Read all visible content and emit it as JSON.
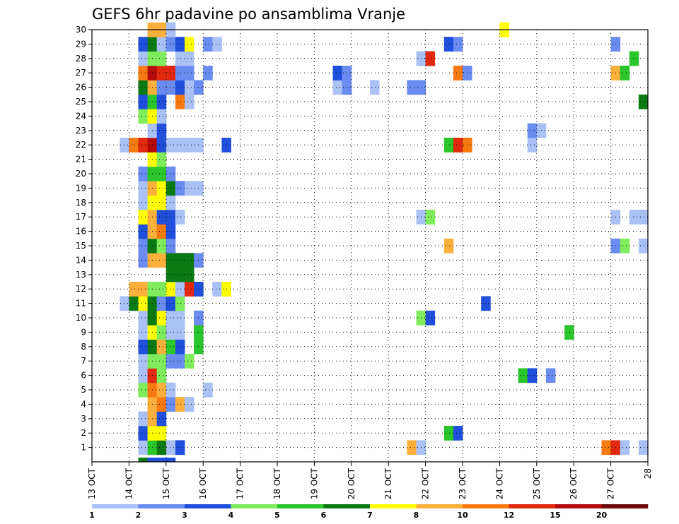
{
  "chart_data": {
    "type": "heatmap",
    "title": "GEFS 6hr padavine po ansamblima Vranje",
    "x_tick_labels": [
      "13 OCT",
      "14 OCT",
      "15 OCT",
      "16 OCT",
      "17 OCT",
      "18 OCT",
      "19 OCT",
      "20 OCT",
      "21 OCT",
      "22 OCT",
      "23 OCT",
      "24 OCT",
      "25 OCT",
      "26 OCT",
      "27 OCT",
      "28"
    ],
    "y_tick_labels": [
      "1",
      "2",
      "3",
      "4",
      "5",
      "6",
      "7",
      "8",
      "9",
      "10",
      "11",
      "12",
      "13",
      "14",
      "15",
      "16",
      "17",
      "18",
      "19",
      "20",
      "21",
      "22",
      "23",
      "24",
      "25",
      "26",
      "27",
      "28",
      "29",
      "30"
    ],
    "xlim_days": [
      13,
      28
    ],
    "time_step_hours": 6,
    "ylim": [
      0,
      30
    ],
    "grid": "dotted",
    "colorbar": {
      "labels": [
        "1",
        "2",
        "3",
        "4",
        "5",
        "6",
        "7",
        "8",
        "10",
        "12",
        "15",
        "20"
      ],
      "colors": [
        "#a9c1f5",
        "#6a8cf1",
        "#1f4fdb",
        "#7fec5b",
        "#2bc62b",
        "#0b7a12",
        "#ffff00",
        "#fbb03b",
        "#f77a11",
        "#e0290e",
        "#b5090c",
        "#6e0a0a"
      ]
    },
    "cells": [
      {
        "m": 1,
        "day": 14,
        "h": 6,
        "c": 1
      },
      {
        "m": 1,
        "day": 14,
        "h": 12,
        "c": 5
      },
      {
        "m": 1,
        "day": 14,
        "h": 18,
        "c": 6
      },
      {
        "m": 1,
        "day": 15,
        "h": 0,
        "c": 1
      },
      {
        "m": 1,
        "day": 15,
        "h": 6,
        "c": 3
      },
      {
        "m": 1,
        "day": 21,
        "h": 12,
        "c": 8
      },
      {
        "m": 1,
        "day": 21,
        "h": 18,
        "c": 1
      },
      {
        "m": 1,
        "day": 26,
        "h": 18,
        "c": 9
      },
      {
        "m": 1,
        "day": 27,
        "h": 0,
        "c": 10
      },
      {
        "m": 1,
        "day": 27,
        "h": 6,
        "c": 1
      },
      {
        "m": 1,
        "day": 27,
        "h": 18,
        "c": 1
      },
      {
        "m": 2,
        "day": 14,
        "h": 6,
        "c": 3
      },
      {
        "m": 2,
        "day": 14,
        "h": 12,
        "c": 7
      },
      {
        "m": 2,
        "day": 14,
        "h": 18,
        "c": 7
      },
      {
        "m": 2,
        "day": 22,
        "h": 12,
        "c": 5
      },
      {
        "m": 2,
        "day": 22,
        "h": 18,
        "c": 3
      },
      {
        "m": 3,
        "day": 14,
        "h": 6,
        "c": 1
      },
      {
        "m": 3,
        "day": 14,
        "h": 12,
        "c": 8
      },
      {
        "m": 3,
        "day": 14,
        "h": 18,
        "c": 3
      },
      {
        "m": 4,
        "day": 14,
        "h": 12,
        "c": 8
      },
      {
        "m": 4,
        "day": 14,
        "h": 18,
        "c": 9
      },
      {
        "m": 4,
        "day": 15,
        "h": 0,
        "c": 2
      },
      {
        "m": 4,
        "day": 15,
        "h": 6,
        "c": 8
      },
      {
        "m": 4,
        "day": 15,
        "h": 12,
        "c": 1
      },
      {
        "m": 5,
        "day": 14,
        "h": 6,
        "c": 4
      },
      {
        "m": 5,
        "day": 14,
        "h": 12,
        "c": 9
      },
      {
        "m": 5,
        "day": 14,
        "h": 18,
        "c": 8
      },
      {
        "m": 5,
        "day": 15,
        "h": 0,
        "c": 1
      },
      {
        "m": 5,
        "day": 16,
        "h": 0,
        "c": 1
      },
      {
        "m": 6,
        "day": 14,
        "h": 6,
        "c": 1
      },
      {
        "m": 6,
        "day": 14,
        "h": 12,
        "c": 10
      },
      {
        "m": 6,
        "day": 14,
        "h": 18,
        "c": 4
      },
      {
        "m": 6,
        "day": 24,
        "h": 12,
        "c": 5
      },
      {
        "m": 6,
        "day": 24,
        "h": 18,
        "c": 3
      },
      {
        "m": 6,
        "day": 25,
        "h": 6,
        "c": 2
      },
      {
        "m": 7,
        "day": 14,
        "h": 6,
        "c": 1
      },
      {
        "m": 7,
        "day": 14,
        "h": 12,
        "c": 4
      },
      {
        "m": 7,
        "day": 14,
        "h": 18,
        "c": 4
      },
      {
        "m": 7,
        "day": 15,
        "h": 0,
        "c": 2
      },
      {
        "m": 7,
        "day": 15,
        "h": 6,
        "c": 2
      },
      {
        "m": 7,
        "day": 15,
        "h": 12,
        "c": 4
      },
      {
        "m": 8,
        "day": 14,
        "h": 6,
        "c": 3
      },
      {
        "m": 8,
        "day": 14,
        "h": 12,
        "c": 6
      },
      {
        "m": 8,
        "day": 14,
        "h": 18,
        "c": 8
      },
      {
        "m": 8,
        "day": 15,
        "h": 0,
        "c": 5
      },
      {
        "m": 8,
        "day": 15,
        "h": 6,
        "c": 3
      },
      {
        "m": 8,
        "day": 15,
        "h": 18,
        "c": 5
      },
      {
        "m": 9,
        "day": 14,
        "h": 6,
        "c": 1
      },
      {
        "m": 9,
        "day": 14,
        "h": 12,
        "c": 7
      },
      {
        "m": 9,
        "day": 14,
        "h": 18,
        "c": 4
      },
      {
        "m": 9,
        "day": 15,
        "h": 0,
        "c": 1
      },
      {
        "m": 9,
        "day": 15,
        "h": 6,
        "c": 1
      },
      {
        "m": 9,
        "day": 15,
        "h": 18,
        "c": 5
      },
      {
        "m": 9,
        "day": 25,
        "h": 18,
        "c": 5
      },
      {
        "m": 10,
        "day": 14,
        "h": 6,
        "c": 1
      },
      {
        "m": 10,
        "day": 14,
        "h": 12,
        "c": 6
      },
      {
        "m": 10,
        "day": 14,
        "h": 18,
        "c": 7
      },
      {
        "m": 10,
        "day": 15,
        "h": 0,
        "c": 1
      },
      {
        "m": 10,
        "day": 15,
        "h": 6,
        "c": 1
      },
      {
        "m": 10,
        "day": 15,
        "h": 18,
        "c": 2
      },
      {
        "m": 10,
        "day": 21,
        "h": 18,
        "c": 4
      },
      {
        "m": 10,
        "day": 22,
        "h": 0,
        "c": 3
      },
      {
        "m": 11,
        "day": 13,
        "h": 18,
        "c": 1
      },
      {
        "m": 11,
        "day": 14,
        "h": 0,
        "c": 6
      },
      {
        "m": 11,
        "day": 14,
        "h": 6,
        "c": 7
      },
      {
        "m": 11,
        "day": 14,
        "h": 12,
        "c": 6
      },
      {
        "m": 11,
        "day": 14,
        "h": 18,
        "c": 2
      },
      {
        "m": 11,
        "day": 15,
        "h": 0,
        "c": 3
      },
      {
        "m": 11,
        "day": 15,
        "h": 6,
        "c": 4
      },
      {
        "m": 11,
        "day": 23,
        "h": 12,
        "c": 3
      },
      {
        "m": 12,
        "day": 14,
        "h": 0,
        "c": 8
      },
      {
        "m": 12,
        "day": 14,
        "h": 6,
        "c": 8
      },
      {
        "m": 12,
        "day": 14,
        "h": 12,
        "c": 4
      },
      {
        "m": 12,
        "day": 14,
        "h": 18,
        "c": 4
      },
      {
        "m": 12,
        "day": 15,
        "h": 0,
        "c": 7
      },
      {
        "m": 12,
        "day": 15,
        "h": 6,
        "c": 1
      },
      {
        "m": 12,
        "day": 15,
        "h": 12,
        "c": 10
      },
      {
        "m": 12,
        "day": 15,
        "h": 18,
        "c": 3
      },
      {
        "m": 12,
        "day": 16,
        "h": 6,
        "c": 1
      },
      {
        "m": 12,
        "day": 16,
        "h": 12,
        "c": 7
      },
      {
        "m": 13,
        "day": 15,
        "h": 0,
        "c": 6
      },
      {
        "m": 13,
        "day": 15,
        "h": 6,
        "c": 6
      },
      {
        "m": 13,
        "day": 15,
        "h": 12,
        "c": 6
      },
      {
        "m": 14,
        "day": 14,
        "h": 6,
        "c": 2
      },
      {
        "m": 14,
        "day": 14,
        "h": 12,
        "c": 8
      },
      {
        "m": 14,
        "day": 14,
        "h": 18,
        "c": 8
      },
      {
        "m": 14,
        "day": 15,
        "h": 0,
        "c": 6
      },
      {
        "m": 14,
        "day": 15,
        "h": 6,
        "c": 6
      },
      {
        "m": 14,
        "day": 15,
        "h": 12,
        "c": 6
      },
      {
        "m": 14,
        "day": 15,
        "h": 18,
        "c": 2
      },
      {
        "m": 15,
        "day": 14,
        "h": 6,
        "c": 2
      },
      {
        "m": 15,
        "day": 14,
        "h": 12,
        "c": 6
      },
      {
        "m": 15,
        "day": 14,
        "h": 18,
        "c": 4
      },
      {
        "m": 15,
        "day": 15,
        "h": 0,
        "c": 2
      },
      {
        "m": 15,
        "day": 22,
        "h": 12,
        "c": 8
      },
      {
        "m": 15,
        "day": 27,
        "h": 0,
        "c": 2
      },
      {
        "m": 15,
        "day": 27,
        "h": 6,
        "c": 4
      },
      {
        "m": 15,
        "day": 27,
        "h": 18,
        "c": 1
      },
      {
        "m": 16,
        "day": 14,
        "h": 6,
        "c": 3
      },
      {
        "m": 16,
        "day": 14,
        "h": 12,
        "c": 8
      },
      {
        "m": 16,
        "day": 14,
        "h": 18,
        "c": 9
      },
      {
        "m": 16,
        "day": 15,
        "h": 0,
        "c": 3
      },
      {
        "m": 17,
        "day": 14,
        "h": 6,
        "c": 7
      },
      {
        "m": 17,
        "day": 14,
        "h": 12,
        "c": 8
      },
      {
        "m": 17,
        "day": 14,
        "h": 18,
        "c": 3
      },
      {
        "m": 17,
        "day": 15,
        "h": 0,
        "c": 3
      },
      {
        "m": 17,
        "day": 15,
        "h": 6,
        "c": 1
      },
      {
        "m": 17,
        "day": 21,
        "h": 18,
        "c": 1
      },
      {
        "m": 17,
        "day": 22,
        "h": 0,
        "c": 4
      },
      {
        "m": 17,
        "day": 27,
        "h": 0,
        "c": 1
      },
      {
        "m": 17,
        "day": 27,
        "h": 12,
        "c": 1
      },
      {
        "m": 17,
        "day": 27,
        "h": 18,
        "c": 1
      },
      {
        "m": 18,
        "day": 14,
        "h": 6,
        "c": 1
      },
      {
        "m": 18,
        "day": 14,
        "h": 12,
        "c": 7
      },
      {
        "m": 18,
        "day": 14,
        "h": 18,
        "c": 7
      },
      {
        "m": 18,
        "day": 15,
        "h": 0,
        "c": 1
      },
      {
        "m": 19,
        "day": 14,
        "h": 6,
        "c": 1
      },
      {
        "m": 19,
        "day": 14,
        "h": 12,
        "c": 8
      },
      {
        "m": 19,
        "day": 14,
        "h": 18,
        "c": 7
      },
      {
        "m": 19,
        "day": 15,
        "h": 0,
        "c": 6
      },
      {
        "m": 19,
        "day": 15,
        "h": 6,
        "c": 2
      },
      {
        "m": 19,
        "day": 15,
        "h": 12,
        "c": 1
      },
      {
        "m": 19,
        "day": 15,
        "h": 18,
        "c": 1
      },
      {
        "m": 20,
        "day": 14,
        "h": 6,
        "c": 2
      },
      {
        "m": 20,
        "day": 14,
        "h": 12,
        "c": 5
      },
      {
        "m": 20,
        "day": 14,
        "h": 18,
        "c": 5
      },
      {
        "m": 20,
        "day": 15,
        "h": 0,
        "c": 2
      },
      {
        "m": 21,
        "day": 14,
        "h": 12,
        "c": 7
      },
      {
        "m": 21,
        "day": 14,
        "h": 18,
        "c": 4
      },
      {
        "m": 22,
        "day": 13,
        "h": 18,
        "c": 1
      },
      {
        "m": 22,
        "day": 14,
        "h": 0,
        "c": 9
      },
      {
        "m": 22,
        "day": 14,
        "h": 6,
        "c": 10
      },
      {
        "m": 22,
        "day": 14,
        "h": 12,
        "c": 11
      },
      {
        "m": 22,
        "day": 14,
        "h": 18,
        "c": 3
      },
      {
        "m": 22,
        "day": 15,
        "h": 0,
        "c": 1
      },
      {
        "m": 22,
        "day": 15,
        "h": 6,
        "c": 1
      },
      {
        "m": 22,
        "day": 15,
        "h": 12,
        "c": 1
      },
      {
        "m": 22,
        "day": 15,
        "h": 18,
        "c": 1
      },
      {
        "m": 22,
        "day": 16,
        "h": 12,
        "c": 3
      },
      {
        "m": 22,
        "day": 22,
        "h": 12,
        "c": 5
      },
      {
        "m": 22,
        "day": 22,
        "h": 18,
        "c": 10
      },
      {
        "m": 22,
        "day": 23,
        "h": 0,
        "c": 9
      },
      {
        "m": 22,
        "day": 24,
        "h": 18,
        "c": 1
      },
      {
        "m": 23,
        "day": 14,
        "h": 12,
        "c": 1
      },
      {
        "m": 23,
        "day": 14,
        "h": 18,
        "c": 3
      },
      {
        "m": 23,
        "day": 24,
        "h": 18,
        "c": 2
      },
      {
        "m": 23,
        "day": 25,
        "h": 0,
        "c": 1
      },
      {
        "m": 24,
        "day": 14,
        "h": 6,
        "c": 4
      },
      {
        "m": 24,
        "day": 14,
        "h": 12,
        "c": 7
      },
      {
        "m": 24,
        "day": 14,
        "h": 18,
        "c": 1
      },
      {
        "m": 25,
        "day": 14,
        "h": 6,
        "c": 3
      },
      {
        "m": 25,
        "day": 14,
        "h": 12,
        "c": 5
      },
      {
        "m": 25,
        "day": 14,
        "h": 18,
        "c": 3
      },
      {
        "m": 25,
        "day": 15,
        "h": 6,
        "c": 9
      },
      {
        "m": 25,
        "day": 15,
        "h": 12,
        "c": 1
      },
      {
        "m": 25,
        "day": 27,
        "h": 18,
        "c": 6
      },
      {
        "m": 26,
        "day": 14,
        "h": 6,
        "c": 6
      },
      {
        "m": 26,
        "day": 14,
        "h": 12,
        "c": 8
      },
      {
        "m": 26,
        "day": 14,
        "h": 18,
        "c": 2
      },
      {
        "m": 26,
        "day": 15,
        "h": 0,
        "c": 2
      },
      {
        "m": 26,
        "day": 15,
        "h": 6,
        "c": 3
      },
      {
        "m": 26,
        "day": 15,
        "h": 12,
        "c": 1
      },
      {
        "m": 26,
        "day": 15,
        "h": 18,
        "c": 2
      },
      {
        "m": 26,
        "day": 19,
        "h": 12,
        "c": 1
      },
      {
        "m": 26,
        "day": 19,
        "h": 18,
        "c": 2
      },
      {
        "m": 26,
        "day": 20,
        "h": 12,
        "c": 1
      },
      {
        "m": 26,
        "day": 21,
        "h": 12,
        "c": 2
      },
      {
        "m": 26,
        "day": 21,
        "h": 18,
        "c": 2
      },
      {
        "m": 27,
        "day": 14,
        "h": 6,
        "c": 9
      },
      {
        "m": 27,
        "day": 14,
        "h": 12,
        "c": 11
      },
      {
        "m": 27,
        "day": 14,
        "h": 18,
        "c": 10
      },
      {
        "m": 27,
        "day": 15,
        "h": 0,
        "c": 10
      },
      {
        "m": 27,
        "day": 15,
        "h": 6,
        "c": 2
      },
      {
        "m": 27,
        "day": 15,
        "h": 12,
        "c": 2
      },
      {
        "m": 27,
        "day": 16,
        "h": 0,
        "c": 2
      },
      {
        "m": 27,
        "day": 19,
        "h": 12,
        "c": 3
      },
      {
        "m": 27,
        "day": 19,
        "h": 18,
        "c": 2
      },
      {
        "m": 27,
        "day": 22,
        "h": 18,
        "c": 9
      },
      {
        "m": 27,
        "day": 23,
        "h": 0,
        "c": 2
      },
      {
        "m": 27,
        "day": 27,
        "h": 0,
        "c": 8
      },
      {
        "m": 27,
        "day": 27,
        "h": 6,
        "c": 5
      },
      {
        "m": 28,
        "day": 14,
        "h": 6,
        "c": 1
      },
      {
        "m": 28,
        "day": 14,
        "h": 12,
        "c": 4
      },
      {
        "m": 28,
        "day": 14,
        "h": 18,
        "c": 4
      },
      {
        "m": 28,
        "day": 15,
        "h": 6,
        "c": 1
      },
      {
        "m": 28,
        "day": 15,
        "h": 12,
        "c": 1
      },
      {
        "m": 28,
        "day": 21,
        "h": 18,
        "c": 1
      },
      {
        "m": 28,
        "day": 22,
        "h": 0,
        "c": 10
      },
      {
        "m": 28,
        "day": 27,
        "h": 12,
        "c": 5
      },
      {
        "m": 29,
        "day": 14,
        "h": 6,
        "c": 3
      },
      {
        "m": 29,
        "day": 14,
        "h": 12,
        "c": 6
      },
      {
        "m": 29,
        "day": 14,
        "h": 18,
        "c": 1
      },
      {
        "m": 29,
        "day": 15,
        "h": 0,
        "c": 2
      },
      {
        "m": 29,
        "day": 15,
        "h": 6,
        "c": 3
      },
      {
        "m": 29,
        "day": 15,
        "h": 12,
        "c": 7
      },
      {
        "m": 29,
        "day": 16,
        "h": 0,
        "c": 2
      },
      {
        "m": 29,
        "day": 16,
        "h": 6,
        "c": 1
      },
      {
        "m": 29,
        "day": 22,
        "h": 12,
        "c": 3
      },
      {
        "m": 29,
        "day": 22,
        "h": 18,
        "c": 2
      },
      {
        "m": 29,
        "day": 27,
        "h": 0,
        "c": 2
      },
      {
        "m": 30,
        "day": 14,
        "h": 12,
        "c": 8
      },
      {
        "m": 30,
        "day": 14,
        "h": 18,
        "c": 8
      },
      {
        "m": 30,
        "day": 15,
        "h": 0,
        "c": 1
      },
      {
        "m": 30,
        "day": 24,
        "h": 0,
        "c": 7
      },
      {
        "m": 0,
        "day": 14,
        "h": 6,
        "c": 6
      },
      {
        "m": 0,
        "day": 14,
        "h": 12,
        "c": 3
      },
      {
        "m": 0,
        "day": 14,
        "h": 18,
        "c": 3
      },
      {
        "m": 0,
        "day": 15,
        "h": 0,
        "c": 3
      }
    ]
  }
}
